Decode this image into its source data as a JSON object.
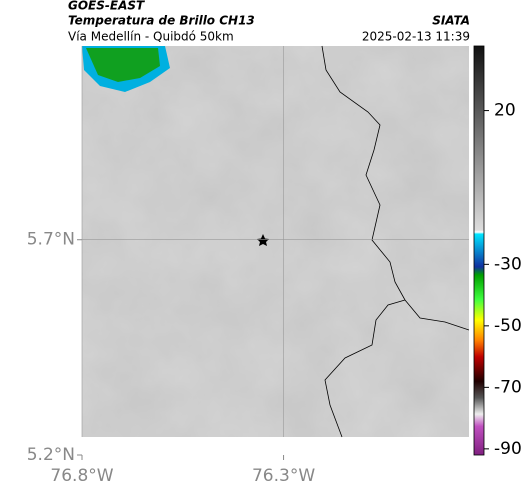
{
  "header": {
    "title": "GOES-EAST",
    "subtitle": "Temperatura de Brillo CH13",
    "region": "Vía Medellín - Quibdó 50km",
    "source": "SIATA",
    "datetime": "2025-02-13 11:39"
  },
  "map": {
    "xlim": [
      -76.8,
      -75.84
    ],
    "ylim": [
      5.2,
      6.15
    ],
    "xticks": [
      {
        "value": -76.8,
        "label": "76.8°W"
      },
      {
        "value": -76.3,
        "label": "76.3°W"
      }
    ],
    "yticks": [
      {
        "value": 5.7,
        "label": "5.7°N"
      },
      {
        "value": 5.2,
        "label": "5.2°N"
      }
    ],
    "grid": true
  },
  "colorbar": {
    "lim": [
      -92,
      41
    ],
    "ticks": [
      20,
      -30,
      -50,
      -70,
      -90
    ]
  }
}
